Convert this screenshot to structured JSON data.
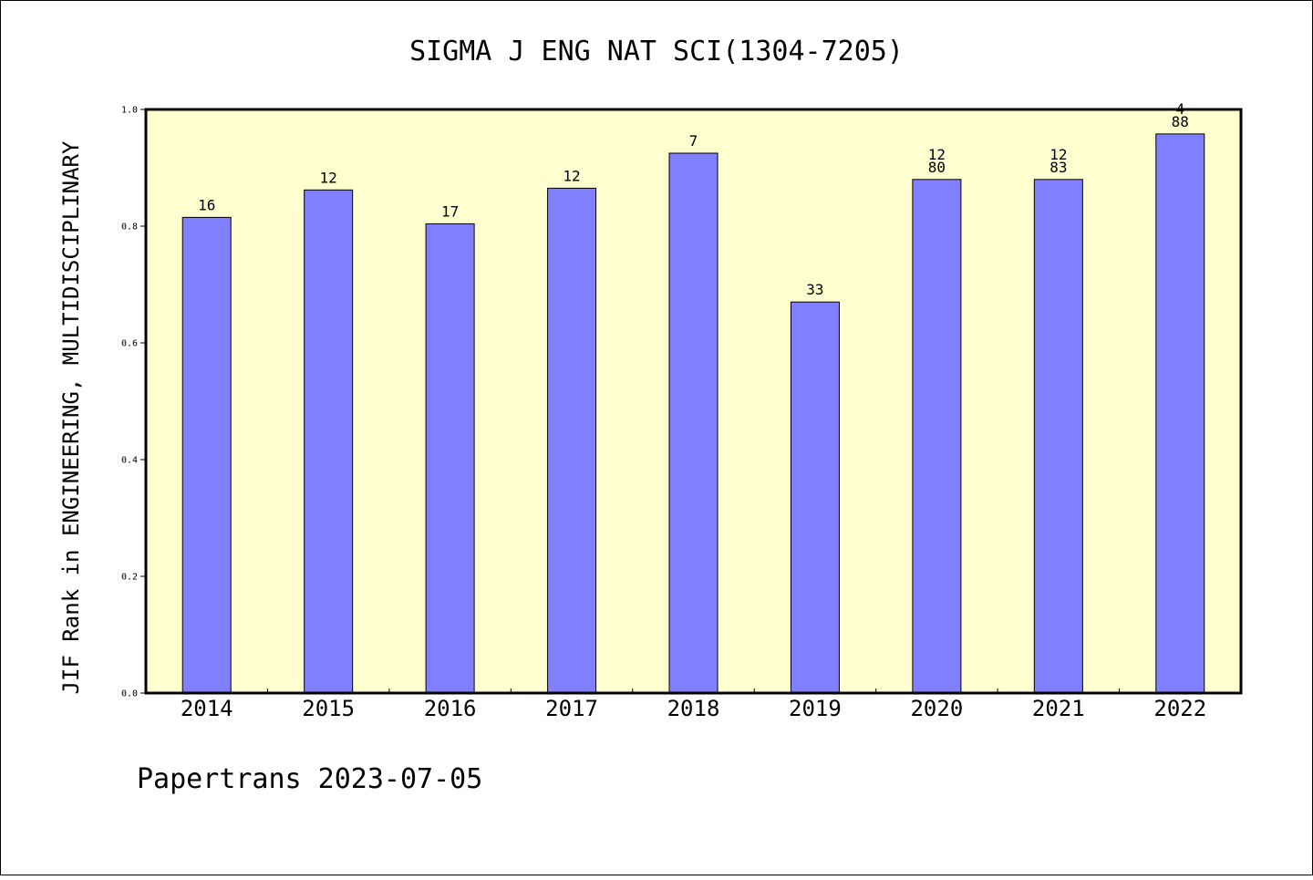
{
  "chart_data": {
    "type": "bar",
    "title": "SIGMA J ENG NAT SCI(1304-7205)",
    "xlabel": "",
    "ylabel": "JIF Rank in ENGINEERING, MULTIDISCIPLINARY",
    "ylim": [
      0.0,
      1.0
    ],
    "yticks": [
      "0.0",
      "0.2",
      "0.4",
      "0.6",
      "0.8",
      "1.0"
    ],
    "grid": false,
    "categories": [
      "2014",
      "2015",
      "2016",
      "2017",
      "2018",
      "2019",
      "2020",
      "2021",
      "2022"
    ],
    "values": [
      0.815,
      0.862,
      0.804,
      0.865,
      0.925,
      0.67,
      0.88,
      0.88,
      0.958
    ],
    "labels": [
      [
        "16"
      ],
      [
        "12"
      ],
      [
        "17"
      ],
      [
        "12"
      ],
      [
        "7"
      ],
      [
        "33"
      ],
      [
        "12",
        "80"
      ],
      [
        "12",
        "83"
      ],
      [
        "4",
        "88"
      ]
    ],
    "colors": {
      "plot_background": "#ffffd0",
      "bar_fill": "#8080ff",
      "bar_stroke": "#000000"
    }
  },
  "footer": {
    "text": "Papertrans 2023-07-05"
  }
}
